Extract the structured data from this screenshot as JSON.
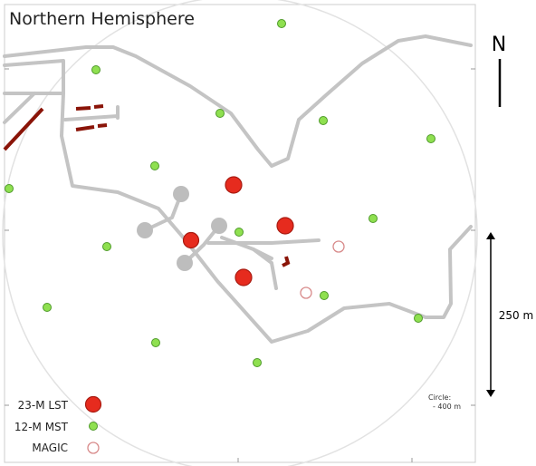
{
  "title": "Northern Hemisphere",
  "compass": "N",
  "scale_bar": "250 m",
  "legend": [
    "23-M LST",
    "12-M MST",
    "MAGIC"
  ],
  "circle_note": {
    "label": "Circle:",
    "value": "- 400 m"
  }
}
